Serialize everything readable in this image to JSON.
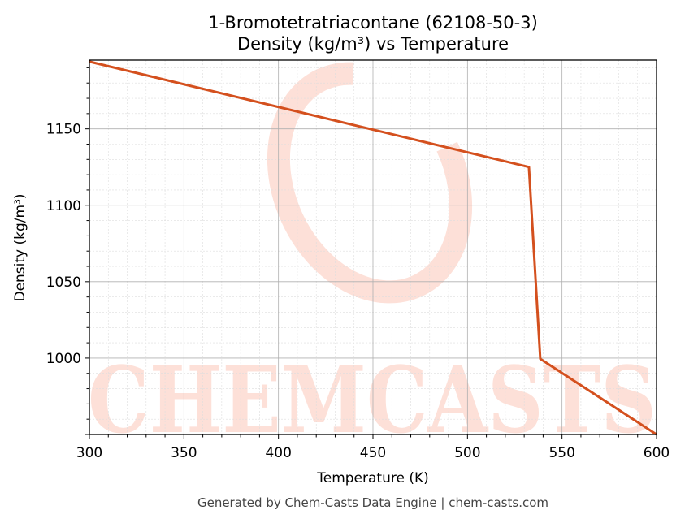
{
  "chart_data": {
    "type": "line",
    "title_line1": "1-Bromotetratriacontane (62108-50-3)",
    "title_line2": "Density (kg/m³) vs Temperature",
    "xlabel": "Temperature (K)",
    "ylabel": "Density (kg/m³)",
    "xlim": [
      300,
      600
    ],
    "ylim": [
      950,
      1195
    ],
    "x_ticks": [
      300,
      350,
      400,
      450,
      500,
      550,
      600
    ],
    "y_ticks": [
      1000,
      1050,
      1100,
      1150
    ],
    "grid": true,
    "series": [
      {
        "color": "#d4501e",
        "x": [
          300,
          532.5,
          538.5,
          600
        ],
        "y": [
          1194,
          1125,
          999.5,
          950
        ]
      }
    ]
  },
  "footer": "Generated by Chem-Casts Data Engine | chem-casts.com",
  "watermark": "CHEMCASTS",
  "colors": {
    "line": "#d4501e",
    "watermark": "#fde0d8",
    "grid_major": "#b0b0b0",
    "grid_minor": "#dddddd"
  }
}
